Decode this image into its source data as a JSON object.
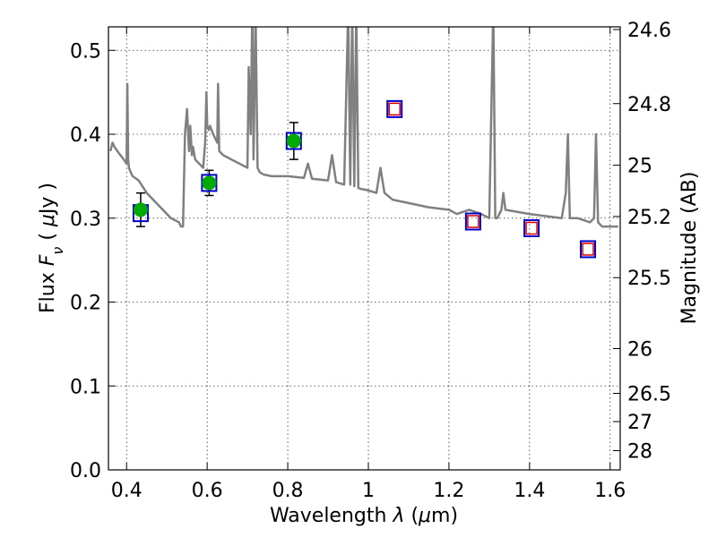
{
  "chart_data": {
    "type": "scatter",
    "xlabel_parts": [
      "Wavelength  ",
      "λ",
      " (",
      "μ",
      "m)"
    ],
    "ylabel_parts": [
      "Flux  ",
      "F",
      "ν",
      "  ( ",
      "μ",
      "Jy )"
    ],
    "y2label": "Magnitude (AB)",
    "xlim": [
      0.355,
      1.625
    ],
    "ylim": [
      0.0,
      0.528
    ],
    "x_ticks": [
      0.4,
      0.6,
      0.8,
      1.0,
      1.2,
      1.4,
      1.6
    ],
    "x_tick_labels": [
      "0.4",
      "0.6",
      "0.8",
      "1",
      "1.2",
      "1.4",
      "1.6"
    ],
    "y_ticks": [
      0.0,
      0.1,
      0.2,
      0.3,
      0.4,
      0.5
    ],
    "y_tick_labels": [
      "0.0",
      "0.1",
      "0.2",
      "0.3",
      "0.4",
      "0.5"
    ],
    "y2_ticks": [
      24.6,
      24.8,
      25,
      25.2,
      25.5,
      26,
      26.5,
      27,
      28
    ],
    "y2_tick_labels": [
      "24.6",
      "24.8",
      "25",
      "25.2",
      "25.5",
      "26",
      "26.5",
      "27",
      "28"
    ],
    "grid": true,
    "colors": {
      "sed": "#808080",
      "model_box": "#0000cc",
      "observed_point": "#00aa00",
      "upper_box": "#dd0000",
      "errorbar": "#000000"
    },
    "series": [
      {
        "kind": "line",
        "x": [
          0.36,
          0.365,
          0.37,
          0.38,
          0.39,
          0.4,
          0.402,
          0.404,
          0.406,
          0.41,
          0.415,
          0.43,
          0.45,
          0.47,
          0.49,
          0.51,
          0.53,
          0.535,
          0.54,
          0.545,
          0.55,
          0.555,
          0.558,
          0.562,
          0.565,
          0.57,
          0.58,
          0.59,
          0.595,
          0.598,
          0.6,
          0.604,
          0.607,
          0.615,
          0.625,
          0.627,
          0.63,
          0.64,
          0.66,
          0.68,
          0.7,
          0.703,
          0.708,
          0.712,
          0.715,
          0.72,
          0.725,
          0.73,
          0.74,
          0.76,
          0.8,
          0.84,
          0.85,
          0.86,
          0.9,
          0.91,
          0.92,
          0.94,
          0.95,
          0.955,
          0.96,
          0.965,
          0.97,
          0.975,
          0.98,
          1.0,
          1.02,
          1.03,
          1.035,
          1.04,
          1.06,
          1.08,
          1.1,
          1.15,
          1.2,
          1.22,
          1.25,
          1.28,
          1.3,
          1.31,
          1.315,
          1.32,
          1.33,
          1.335,
          1.34,
          1.4,
          1.48,
          1.49,
          1.495,
          1.5,
          1.52,
          1.55,
          1.56,
          1.565,
          1.57,
          1.58,
          1.6,
          1.62
        ],
        "y": [
          0.38,
          0.39,
          0.385,
          0.378,
          0.372,
          0.365,
          0.46,
          0.37,
          0.36,
          0.355,
          0.35,
          0.345,
          0.33,
          0.32,
          0.31,
          0.3,
          0.295,
          0.29,
          0.29,
          0.4,
          0.43,
          0.38,
          0.41,
          0.375,
          0.385,
          0.37,
          0.365,
          0.36,
          0.39,
          0.45,
          0.41,
          0.405,
          0.41,
          0.4,
          0.39,
          0.46,
          0.38,
          0.375,
          0.37,
          0.365,
          0.36,
          0.48,
          0.4,
          0.55,
          0.37,
          0.55,
          0.36,
          0.355,
          0.352,
          0.35,
          0.35,
          0.348,
          0.365,
          0.347,
          0.345,
          0.375,
          0.343,
          0.34,
          0.55,
          0.34,
          0.55,
          0.338,
          0.55,
          0.336,
          0.335,
          0.333,
          0.33,
          0.36,
          0.345,
          0.33,
          0.322,
          0.32,
          0.318,
          0.313,
          0.31,
          0.305,
          0.31,
          0.305,
          0.3,
          0.55,
          0.3,
          0.3,
          0.31,
          0.33,
          0.31,
          0.305,
          0.3,
          0.33,
          0.4,
          0.3,
          0.3,
          0.295,
          0.3,
          0.4,
          0.295,
          0.29,
          0.29,
          0.29
        ]
      },
      {
        "kind": "observed",
        "x": [
          0.435,
          0.605,
          0.815
        ],
        "y": [
          0.31,
          0.342,
          0.392
        ],
        "yerr": [
          0.02,
          0.015,
          0.022
        ]
      },
      {
        "kind": "model_boxes",
        "x": [
          0.435,
          0.605,
          0.815,
          1.065,
          1.26,
          1.405,
          1.545
        ],
        "y": [
          0.306,
          0.342,
          0.392,
          0.43,
          0.296,
          0.288,
          0.263
        ]
      },
      {
        "kind": "upper_limits",
        "x": [
          1.065,
          1.26,
          1.405,
          1.545
        ],
        "y": [
          0.43,
          0.296,
          0.288,
          0.263
        ]
      }
    ]
  }
}
